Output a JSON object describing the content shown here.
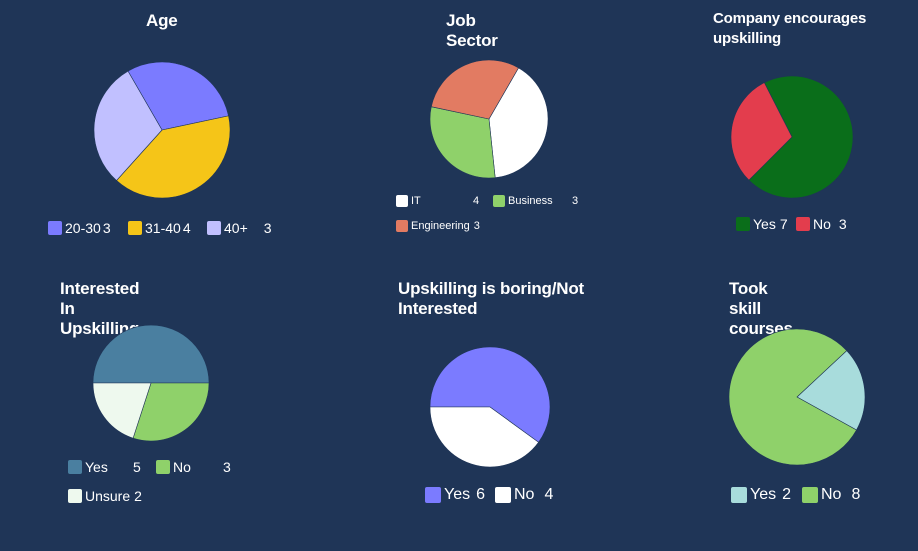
{
  "chart_data": [
    {
      "type": "pie",
      "title": "Age",
      "slices": [
        {
          "label": "20-30",
          "value": 3,
          "color": "#7b7bff"
        },
        {
          "label": "31-40",
          "value": 4,
          "color": "#f5c518"
        },
        {
          "label": "40+",
          "value": 3,
          "color": "#c1c0ff"
        }
      ]
    },
    {
      "type": "pie",
      "title": "Job Sector",
      "slices": [
        {
          "label": "IT",
          "value": 4,
          "color": "#ffffff"
        },
        {
          "label": "Business",
          "value": 3,
          "color": "#8fd16a"
        },
        {
          "label": "Engineering",
          "value": 3,
          "color": "#e27b62"
        }
      ]
    },
    {
      "type": "pie",
      "title": "Company encourages upskilling",
      "slices": [
        {
          "label": "Yes",
          "value": 7,
          "color": "#0a6e1a"
        },
        {
          "label": "No",
          "value": 3,
          "color": "#e33d4d"
        }
      ]
    },
    {
      "type": "pie",
      "title": "Interested In Upskilling",
      "slices": [
        {
          "label": "Yes",
          "value": 5,
          "color": "#4a7fa0"
        },
        {
          "label": "No",
          "value": 3,
          "color": "#8fd16a"
        },
        {
          "label": "Unsure",
          "value": 2,
          "color": "#eef9ee"
        }
      ]
    },
    {
      "type": "pie",
      "title": "Upskilling is boring/Not Interested",
      "slices": [
        {
          "label": "Yes",
          "value": 6,
          "color": "#7b7bff"
        },
        {
          "label": "No",
          "value": 4,
          "color": "#ffffff"
        }
      ]
    },
    {
      "type": "pie",
      "title": "Took skill courses",
      "slices": [
        {
          "label": "Yes",
          "value": 2,
          "color": "#a8dcdc"
        },
        {
          "label": "No",
          "value": 8,
          "color": "#8fd16a"
        }
      ]
    }
  ]
}
